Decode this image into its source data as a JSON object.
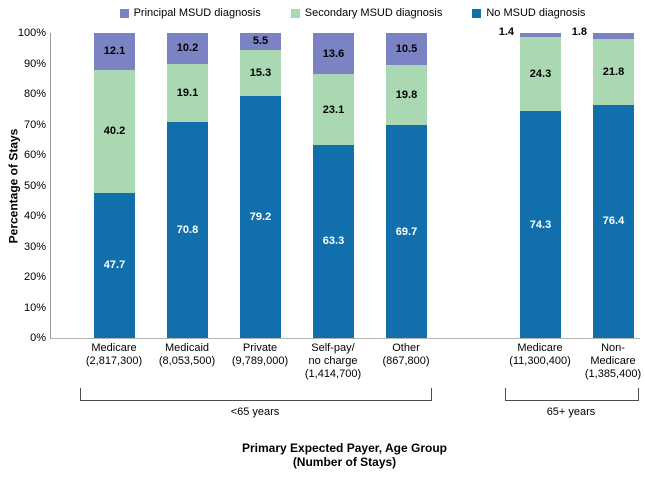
{
  "legend": {
    "items": [
      {
        "label": "Principal MSUD diagnosis",
        "color": "#7B83C4"
      },
      {
        "label": "Secondary MSUD diagnosis",
        "color": "#AAD8B2"
      },
      {
        "label": "No MSUD diagnosis",
        "color": "#1170AC"
      }
    ]
  },
  "y_axis": {
    "title": "Percentage of Stays",
    "ticks": [
      "0%",
      "10%",
      "20%",
      "30%",
      "40%",
      "50%",
      "60%",
      "70%",
      "80%",
      "90%",
      "100%"
    ],
    "min": 0,
    "max": 100
  },
  "x_axis": {
    "title_line1": "Primary Expected Payer, Age Group",
    "title_line2": "(Number of Stays)"
  },
  "groups": [
    {
      "label": "<65 years",
      "categories": [
        0,
        1,
        2,
        3,
        4
      ]
    },
    {
      "label": "65+ years",
      "categories": [
        5,
        6
      ]
    }
  ],
  "chart_data": {
    "type": "bar",
    "stacked": true,
    "percent_stacked": true,
    "ylim": [
      0,
      100
    ],
    "grid": false,
    "legend_position": "top",
    "categories": [
      [
        "Medicare",
        "(2,817,300)"
      ],
      [
        "Medicaid",
        "(8,053,500)"
      ],
      [
        "Private",
        "(9,789,000)"
      ],
      [
        "Self-pay/",
        "no charge",
        "(1,414,700)"
      ],
      [
        "Other",
        "(867,800)"
      ],
      [
        "Medicare",
        "(11,300,400)"
      ],
      [
        "Non-",
        "Medicare",
        "(1,385,400)"
      ]
    ],
    "series": [
      {
        "name": "No MSUD diagnosis",
        "color": "#1170AC",
        "text_color": "#FFFFFF",
        "values": [
          47.7,
          70.8,
          79.2,
          63.3,
          69.7,
          74.3,
          76.4
        ],
        "label_outside": [
          false,
          false,
          false,
          false,
          false,
          false,
          false
        ]
      },
      {
        "name": "Secondary MSUD diagnosis",
        "color": "#AAD8B2",
        "text_color": "#000000",
        "values": [
          40.2,
          19.1,
          15.3,
          23.1,
          19.8,
          24.3,
          21.8
        ],
        "label_outside": [
          false,
          false,
          false,
          false,
          false,
          false,
          false
        ]
      },
      {
        "name": "Principal MSUD diagnosis",
        "color": "#7B83C4",
        "text_color": "#000000",
        "values": [
          12.1,
          10.2,
          5.5,
          13.6,
          10.5,
          1.4,
          1.8
        ],
        "label_outside": [
          false,
          false,
          false,
          false,
          false,
          true,
          true
        ]
      }
    ]
  }
}
